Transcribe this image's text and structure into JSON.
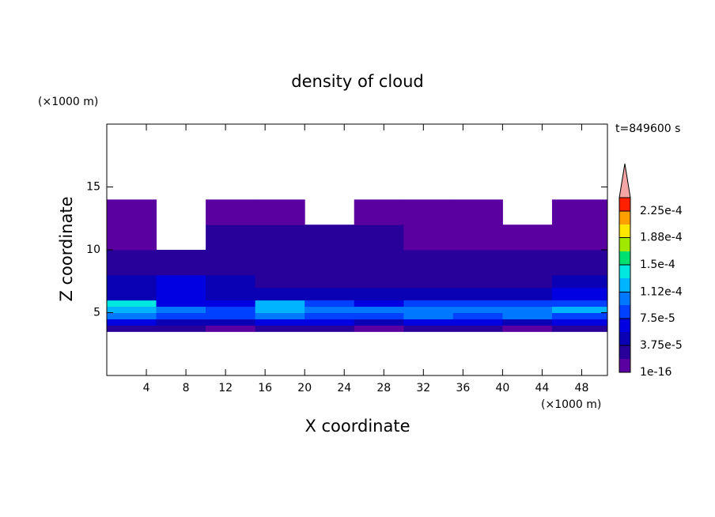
{
  "chart_data": {
    "type": "contour",
    "title": "density of cloud",
    "y_unit_label": "(×1000 m)",
    "x_unit_label": "(×1000 m)",
    "time_label": "t=849600 s",
    "x_label": "X coordinate",
    "y_label": "Z coordinate",
    "xlim": [
      0,
      50.6
    ],
    "ylim": [
      0,
      20
    ],
    "xticks": [
      4,
      8,
      12,
      16,
      20,
      24,
      28,
      32,
      36,
      40,
      44,
      48
    ],
    "yticks": [
      5,
      10,
      15
    ],
    "x_edges": [
      0,
      5,
      10,
      15,
      20,
      25,
      30,
      35,
      40,
      45,
      50.6
    ],
    "z_edges": [
      3.5,
      4,
      4.5,
      5,
      5.5,
      6,
      7,
      8,
      10,
      12,
      14
    ],
    "values": [
      [
        2e-05,
        2e-05,
        1.5e-05,
        2e-05,
        2e-05,
        1.5e-05,
        2e-05,
        2e-05,
        1.5e-05,
        2e-05
      ],
      [
        6e-05,
        5e-05,
        4e-05,
        6e-05,
        6e-05,
        5e-05,
        6e-05,
        6e-05,
        5e-05,
        6e-05
      ],
      [
        0.0001,
        9e-05,
        8e-05,
        0.0001,
        9e-05,
        9e-05,
        0.0001,
        9e-05,
        0.0001,
        9e-05
      ],
      [
        0.00013,
        9.5e-05,
        8e-05,
        0.00012,
        0.0001,
        0.0001,
        9.5e-05,
        0.00011,
        0.000105,
        0.000115
      ],
      [
        0.000135,
        7e-05,
        7e-05,
        0.00012,
        8e-05,
        7e-05,
        9e-05,
        9e-05,
        8e-05,
        9e-05
      ],
      [
        5e-05,
        6e-05,
        4.5e-05,
        4e-05,
        4e-05,
        4e-05,
        5e-05,
        4.5e-05,
        4e-05,
        6e-05
      ],
      [
        4e-05,
        6e-05,
        4e-05,
        3e-05,
        3e-05,
        3e-05,
        3e-05,
        3e-05,
        2.5e-05,
        4e-05
      ],
      [
        2.5e-05,
        3e-05,
        3e-05,
        2.5e-05,
        2.5e-05,
        3e-05,
        2.5e-05,
        2.5e-05,
        2e-05,
        2e-05
      ],
      [
        1.5e-05,
        null,
        2e-05,
        2e-05,
        2e-05,
        2e-05,
        1.5e-05,
        1e-05,
        1e-05,
        1e-05
      ],
      [
        1e-05,
        null,
        1e-05,
        1e-05,
        null,
        1e-05,
        1e-05,
        1e-05,
        null,
        1e-05
      ]
    ],
    "colorbar": {
      "levels": [
        1e-16,
        1.875e-05,
        3.75e-05,
        5.625e-05,
        7.5e-05,
        9.375e-05,
        0.0001125,
        0.00013125,
        0.00015,
        0.00016875,
        0.0001875,
        0.00020625,
        0.000225,
        0.00024375
      ],
      "colors": [
        "#5a00a0",
        "#28009a",
        "#0a00b4",
        "#0000e0",
        "#0040ff",
        "#0078ff",
        "#00b4ff",
        "#00e8e0",
        "#00e070",
        "#a0e800",
        "#ffe800",
        "#ffa000",
        "#ff2000"
      ],
      "extend_color": "#f4a6a6",
      "ticks": [
        {
          "value": 1e-16,
          "label": "1e-16"
        },
        {
          "value": 3.75e-05,
          "label": "3.75e-5"
        },
        {
          "value": 7.5e-05,
          "label": "7.5e-5"
        },
        {
          "value": 0.000112,
          "label": "1.12e-4"
        },
        {
          "value": 0.00015,
          "label": "1.5e-4"
        },
        {
          "value": 0.000188,
          "label": "1.88e-4"
        },
        {
          "value": 0.000225,
          "label": "2.25e-4"
        }
      ]
    }
  }
}
